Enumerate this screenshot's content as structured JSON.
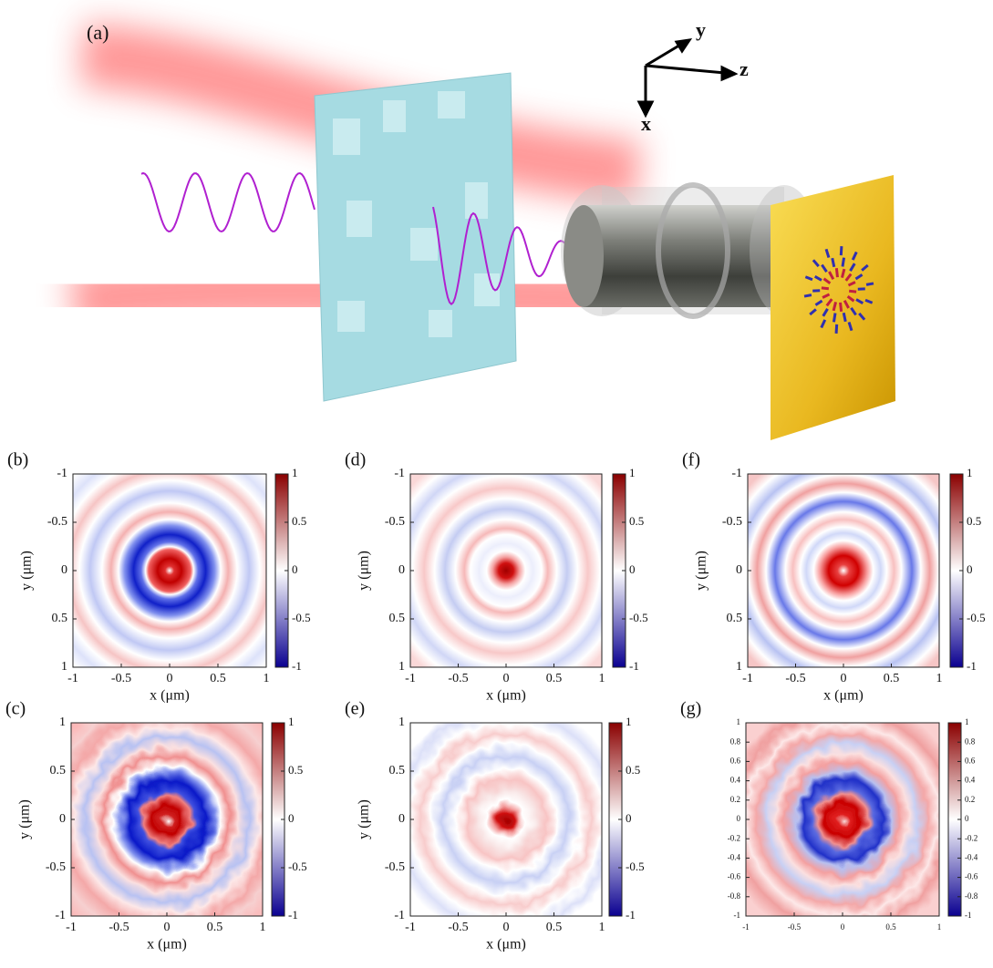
{
  "illustration": {
    "label": "(a)",
    "axes": [
      "x",
      "y",
      "z"
    ]
  },
  "chart_data": [
    {
      "type": "heatmap",
      "label": "(b)",
      "xlabel": "x (μm)",
      "ylabel": "y (μm)",
      "xlim": [
        -1,
        1
      ],
      "ylim": [
        1,
        -1
      ],
      "xticks": [
        -1,
        -0.5,
        0,
        0.5,
        1
      ],
      "yticks": [
        -1,
        -0.5,
        0,
        0.5,
        1
      ],
      "clim": [
        -1,
        1
      ],
      "cticks": [
        -1,
        -0.5,
        0,
        0.5,
        1
      ],
      "colormap": [
        "#0a0090",
        "#ffffff",
        "#8a0000"
      ]
    },
    {
      "type": "heatmap",
      "label": "(d)",
      "xlabel": "x (μm)",
      "ylabel": "y (μm)",
      "xlim": [
        -1,
        1
      ],
      "ylim": [
        1,
        -1
      ],
      "xticks": [
        -1,
        -0.5,
        0,
        0.5,
        1
      ],
      "yticks": [
        -1,
        -0.5,
        0,
        0.5,
        1
      ],
      "clim": [
        -1,
        1
      ],
      "cticks": [
        -1,
        -0.5,
        0,
        0.5,
        1
      ],
      "colormap": [
        "#0a0090",
        "#ffffff",
        "#8a0000"
      ]
    },
    {
      "type": "heatmap",
      "label": "(f)",
      "xlabel": "x (μm)",
      "ylabel": "y (μm)",
      "xlim": [
        -1,
        1
      ],
      "ylim": [
        1,
        -1
      ],
      "xticks": [
        -1,
        -0.5,
        0,
        0.5,
        1
      ],
      "yticks": [
        -1,
        -0.5,
        0,
        0.5,
        1
      ],
      "clim": [
        -1,
        1
      ],
      "cticks": [
        -1,
        -0.5,
        0,
        0.5,
        1
      ],
      "colormap": [
        "#0a0090",
        "#ffffff",
        "#8a0000"
      ]
    },
    {
      "type": "heatmap",
      "label": "(c)",
      "xlabel": "x (μm)",
      "ylabel": "y (μm)",
      "xlim": [
        -1,
        1
      ],
      "ylim": [
        -1,
        1
      ],
      "xticks": [
        -1,
        -0.5,
        0,
        0.5,
        1
      ],
      "yticks": [
        -1,
        -0.5,
        0,
        0.5,
        1
      ],
      "clim": [
        -1,
        1
      ],
      "cticks": [
        -1,
        -0.5,
        0,
        0.5,
        1
      ],
      "colormap": [
        "#0a0090",
        "#ffffff",
        "#8a0000"
      ]
    },
    {
      "type": "heatmap",
      "label": "(e)",
      "xlabel": "x (μm)",
      "ylabel": "y (μm)",
      "xlim": [
        -1,
        1
      ],
      "ylim": [
        -1,
        1
      ],
      "xticks": [
        -1,
        -0.5,
        0,
        0.5,
        1
      ],
      "yticks": [
        -1,
        -0.5,
        0,
        0.5,
        1
      ],
      "clim": [
        -1,
        1
      ],
      "cticks": [
        -1,
        -0.5,
        0,
        0.5,
        1
      ],
      "colormap": [
        "#0a0090",
        "#ffffff",
        "#8a0000"
      ]
    },
    {
      "type": "heatmap",
      "label": "(g)",
      "xlim": [
        -1,
        1
      ],
      "ylim": [
        -1,
        1
      ],
      "xticks": [
        -1,
        -0.5,
        0,
        0.5,
        1
      ],
      "yticks": [
        -1,
        -0.8,
        -0.6,
        -0.4,
        -0.2,
        0,
        0.2,
        0.4,
        0.6,
        0.8,
        1
      ],
      "clim": [
        -1,
        1
      ],
      "cticks": [
        -1,
        -0.8,
        -0.6,
        -0.4,
        -0.2,
        0,
        0.2,
        0.4,
        0.6,
        0.8,
        1
      ],
      "colormap": [
        "#0a0090",
        "#ffffff",
        "#8a0000"
      ]
    }
  ]
}
